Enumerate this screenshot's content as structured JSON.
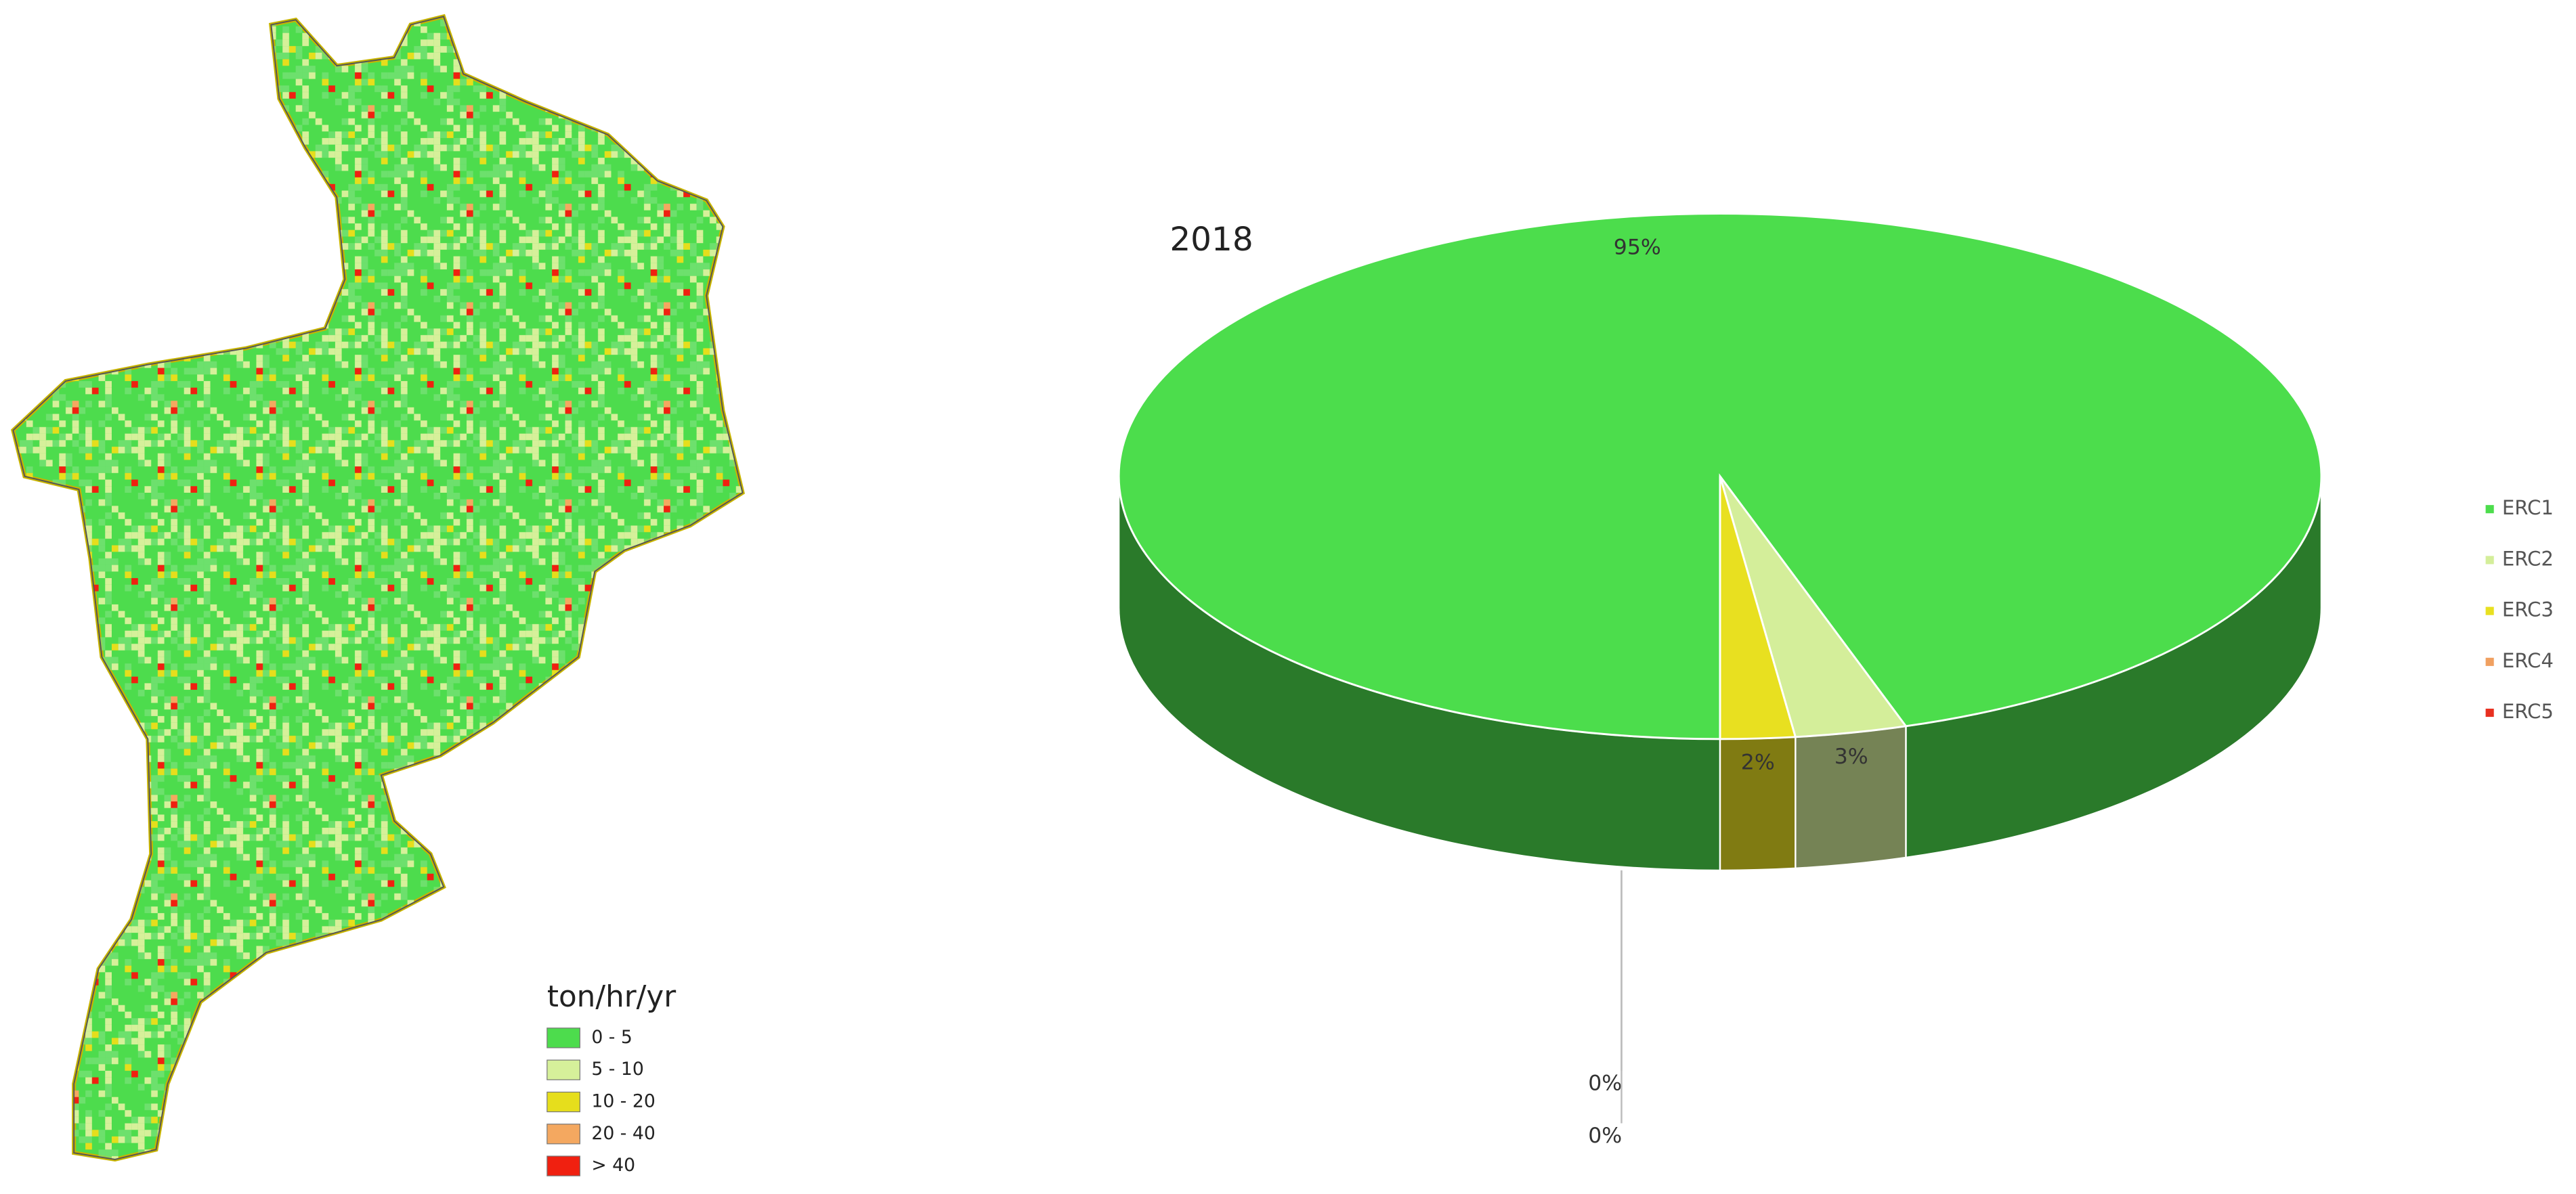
{
  "chart_data": {
    "type": "pie",
    "title": "2018",
    "categories": [
      "ERC1",
      "ERC2",
      "ERC3",
      "ERC4",
      "ERC5"
    ],
    "values": [
      95,
      3,
      2,
      0,
      0
    ],
    "value_labels": [
      "95%",
      "3%",
      "2%",
      "0%",
      "0%"
    ],
    "colors": [
      "#4cdd4c",
      "#d4ee9a",
      "#e8e020",
      "#f0a060",
      "#e83020"
    ],
    "legend": "right"
  },
  "map": {
    "legend_title": "ton/hr/yr",
    "legend": [
      {
        "label": "0 - 5",
        "color": "#4ddc4d"
      },
      {
        "label": "5 - 10",
        "color": "#d6f09a"
      },
      {
        "label": "10 - 20",
        "color": "#e6de1c"
      },
      {
        "label": "20 - 40",
        "color": "#f4a860"
      },
      {
        "label": "> 40",
        "color": "#f02010"
      }
    ]
  }
}
